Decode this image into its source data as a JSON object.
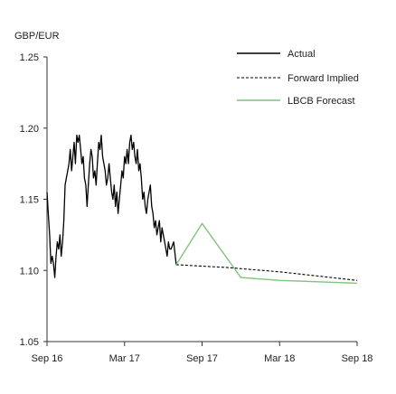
{
  "chart_data": {
    "type": "line",
    "y_unit_label": "GBP/EUR",
    "ylim": [
      1.05,
      1.25
    ],
    "y_ticks": [
      "1.25",
      "1.20",
      "1.15",
      "1.10",
      "1.05"
    ],
    "y_tick_values": [
      1.25,
      1.2,
      1.15,
      1.1,
      1.05
    ],
    "x_ticks": [
      "Sep 16",
      "Mar 17",
      "Sep 17",
      "Mar 18",
      "Sep 18"
    ],
    "x_tick_values": [
      0,
      6,
      12,
      18,
      24
    ],
    "xlim": [
      0,
      24
    ],
    "grid": false,
    "legend_position": "top-right",
    "series": [
      {
        "name": "Actual",
        "color": "#000000",
        "style": "solid",
        "x": [
          0,
          0.1,
          0.2,
          0.3,
          0.4,
          0.5,
          0.6,
          0.7,
          0.8,
          0.9,
          1.0,
          1.1,
          1.2,
          1.3,
          1.4,
          1.5,
          1.6,
          1.7,
          1.8,
          1.9,
          2.0,
          2.1,
          2.2,
          2.3,
          2.4,
          2.5,
          2.6,
          2.7,
          2.8,
          2.9,
          3.0,
          3.1,
          3.2,
          3.3,
          3.4,
          3.5,
          3.6,
          3.7,
          3.8,
          3.9,
          4.0,
          4.1,
          4.2,
          4.3,
          4.4,
          4.5,
          4.6,
          4.7,
          4.8,
          4.9,
          5.0,
          5.1,
          5.2,
          5.3,
          5.4,
          5.5,
          5.6,
          5.7,
          5.8,
          5.9,
          6.0,
          6.1,
          6.2,
          6.3,
          6.4,
          6.5,
          6.6,
          6.7,
          6.8,
          6.9,
          7.0,
          7.1,
          7.2,
          7.3,
          7.4,
          7.5,
          7.6,
          7.7,
          7.8,
          7.9,
          8.0,
          8.1,
          8.2,
          8.3,
          8.4,
          8.5,
          8.6,
          8.7,
          8.8,
          8.9,
          9.0,
          9.1,
          9.2,
          9.3,
          9.4,
          9.5,
          9.6,
          9.8,
          10.0
        ],
        "values": [
          1.155,
          1.14,
          1.125,
          1.105,
          1.11,
          1.105,
          1.095,
          1.11,
          1.12,
          1.115,
          1.125,
          1.11,
          1.12,
          1.135,
          1.16,
          1.165,
          1.17,
          1.175,
          1.185,
          1.17,
          1.18,
          1.19,
          1.175,
          1.195,
          1.19,
          1.195,
          1.185,
          1.175,
          1.18,
          1.165,
          1.16,
          1.145,
          1.16,
          1.175,
          1.185,
          1.18,
          1.165,
          1.17,
          1.16,
          1.175,
          1.19,
          1.185,
          1.195,
          1.18,
          1.175,
          1.17,
          1.16,
          1.165,
          1.175,
          1.165,
          1.155,
          1.15,
          1.16,
          1.145,
          1.155,
          1.14,
          1.15,
          1.16,
          1.17,
          1.165,
          1.18,
          1.175,
          1.185,
          1.175,
          1.19,
          1.195,
          1.185,
          1.19,
          1.18,
          1.175,
          1.185,
          1.17,
          1.175,
          1.165,
          1.15,
          1.155,
          1.145,
          1.14,
          1.15,
          1.155,
          1.16,
          1.145,
          1.14,
          1.13,
          1.135,
          1.125,
          1.13,
          1.135,
          1.12,
          1.13,
          1.125,
          1.12,
          1.115,
          1.11,
          1.12,
          1.115,
          1.115,
          1.12,
          1.104
        ]
      },
      {
        "name": "Forward Implied",
        "color": "#000000",
        "style": "dashed",
        "x": [
          10.0,
          14.0,
          18.0,
          21.0,
          24.0
        ],
        "values": [
          1.104,
          1.102,
          1.099,
          1.096,
          1.093
        ]
      },
      {
        "name": "LBCB Forecast",
        "color": "#7dc47d",
        "style": "solid",
        "x": [
          10.0,
          12.0,
          15.0,
          18.0,
          21.0,
          24.0
        ],
        "values": [
          1.104,
          1.133,
          1.095,
          1.093,
          1.092,
          1.091
        ]
      }
    ]
  }
}
